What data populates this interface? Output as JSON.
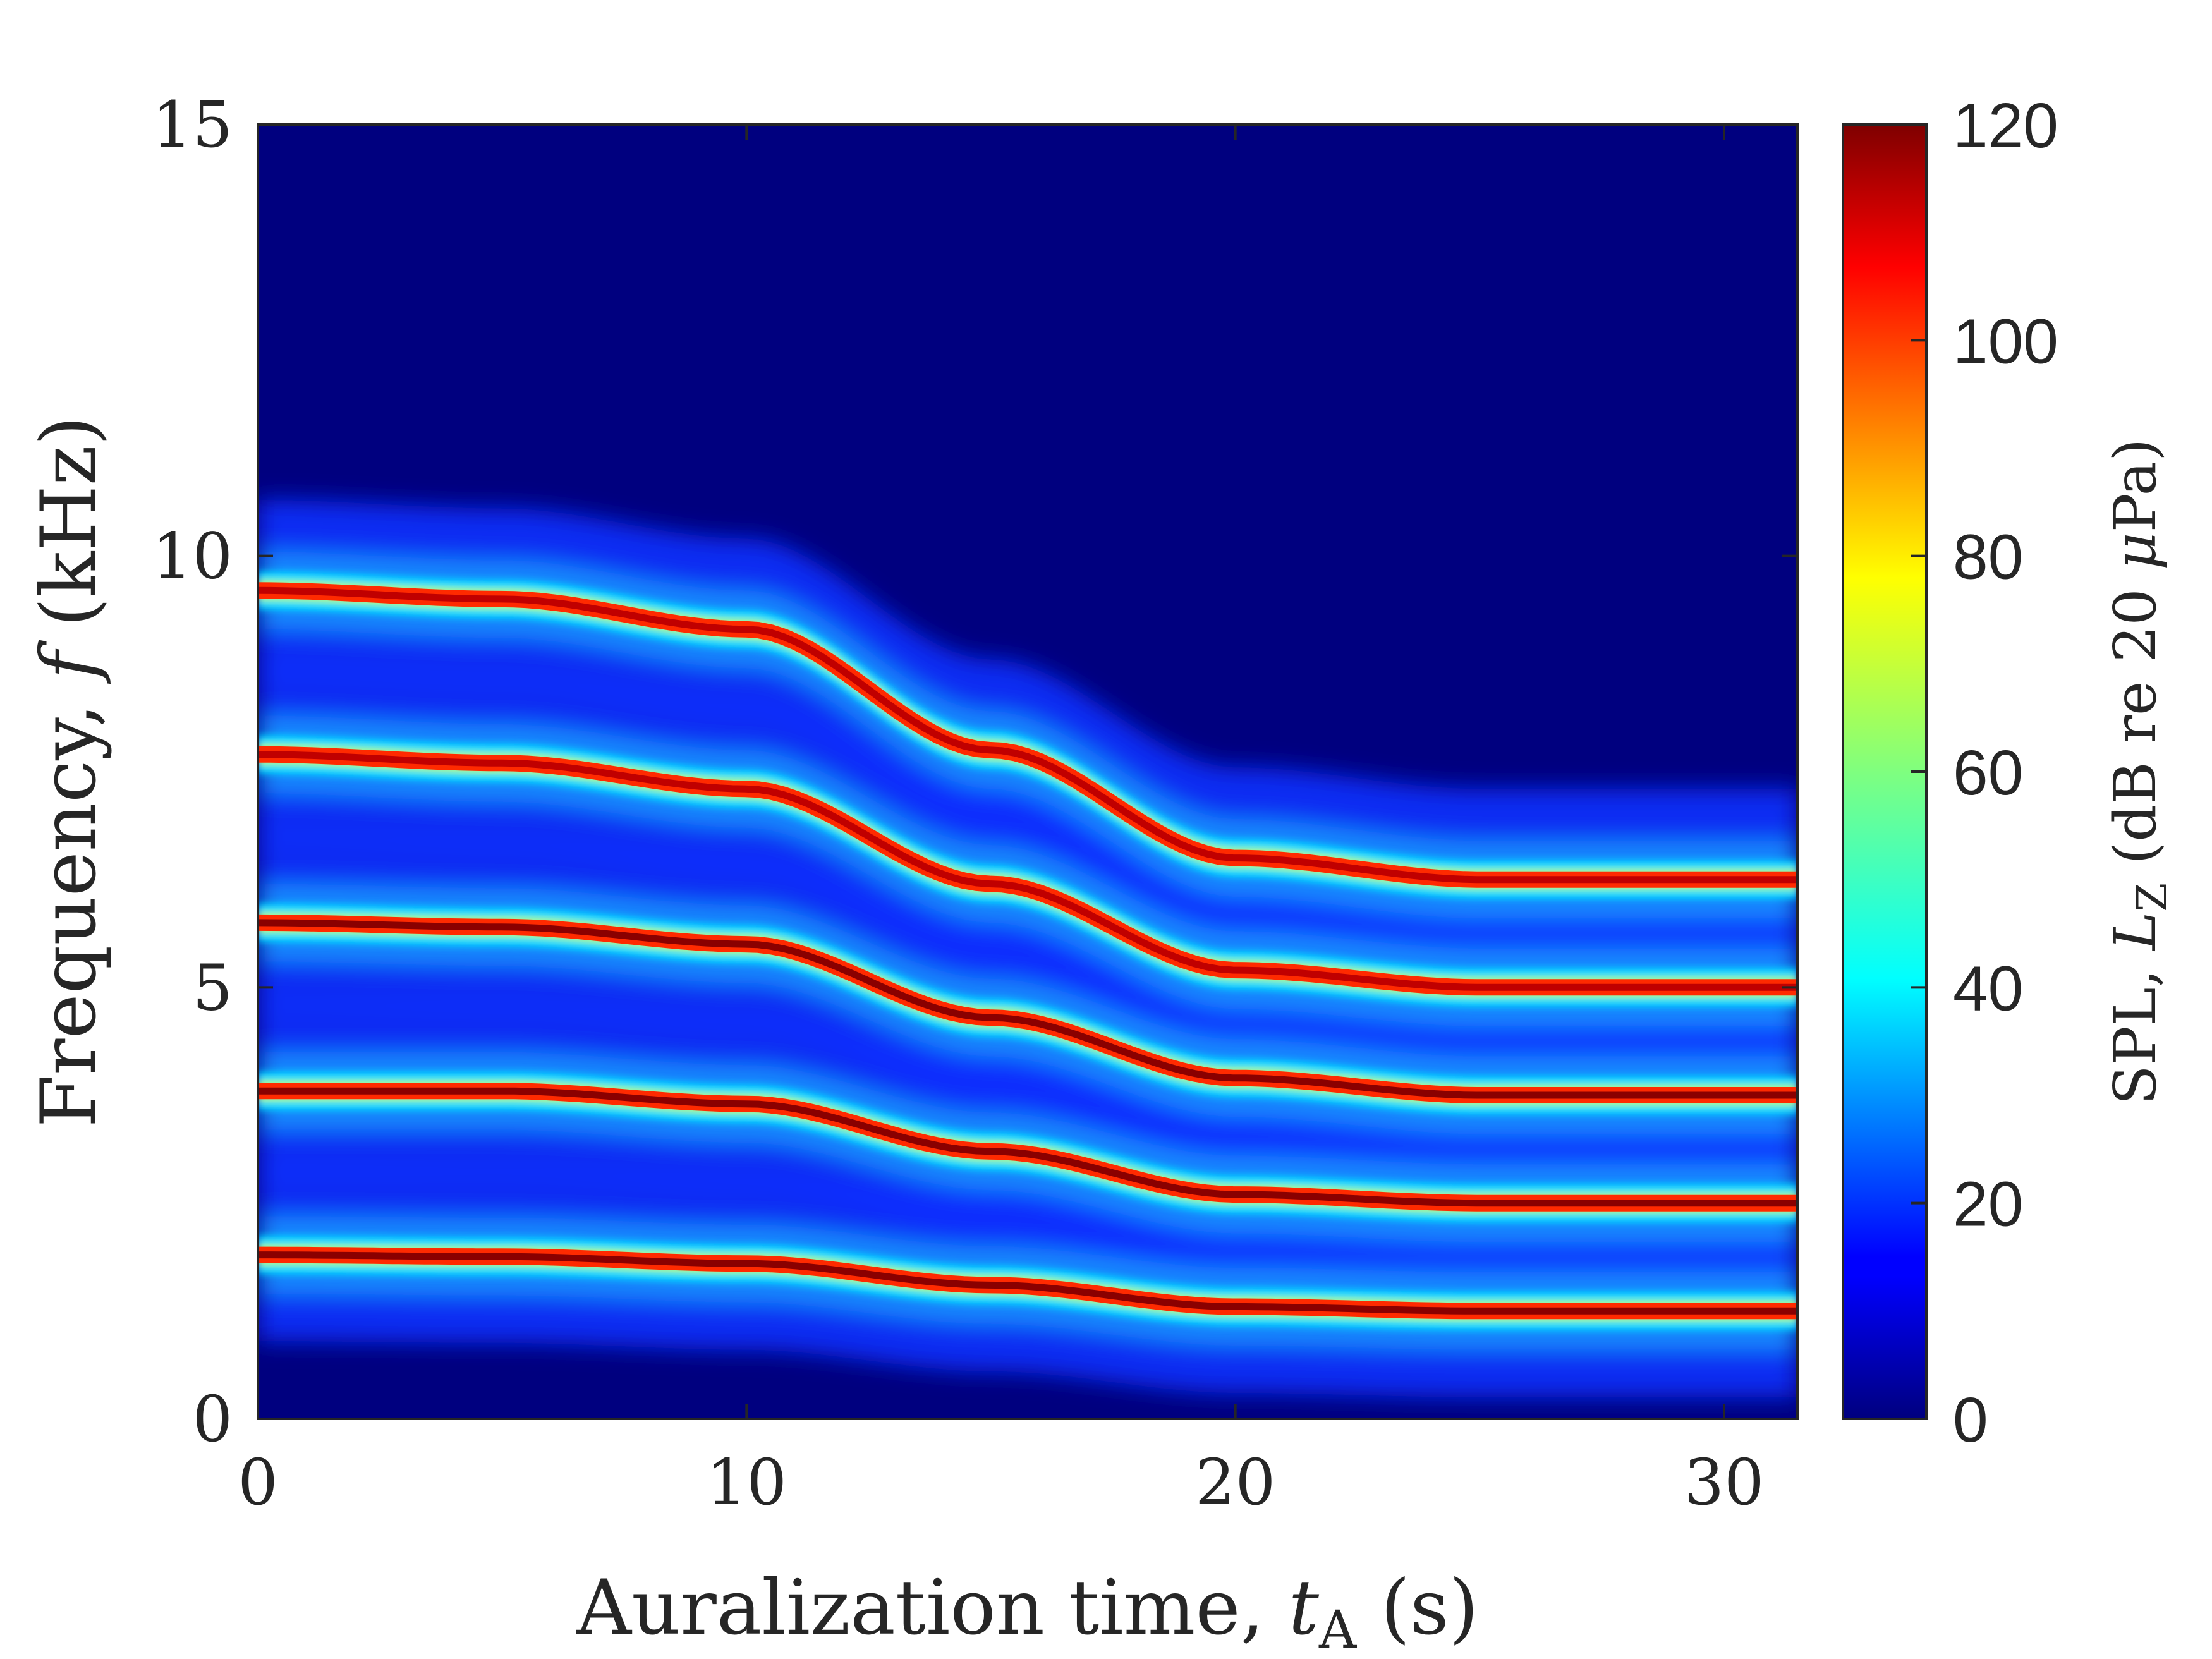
{
  "chart_data": {
    "type": "heatmap",
    "title": "",
    "xlabel": {
      "main": "Auralization time, ",
      "symbol": "t",
      "subscript": "A",
      "unit": " (s)"
    },
    "ylabel": {
      "main": "Frequency, ",
      "symbol": "f",
      "unit": " (kHz)"
    },
    "xlim": [
      0,
      31.5
    ],
    "ylim": [
      0,
      15
    ],
    "x_ticks": [
      "0",
      "10",
      "20",
      "30"
    ],
    "x_tick_values": [
      0,
      10,
      20,
      30
    ],
    "y_ticks": [
      "0",
      "5",
      "10",
      "15"
    ],
    "y_tick_values": [
      0,
      5,
      10,
      15
    ],
    "colorbar": {
      "label": {
        "main": "SPL, ",
        "symbol": "L",
        "subscript": "Z",
        "unit": " (dB re 20 ",
        "mu": "μ",
        "unit_end": "Pa)"
      },
      "range": [
        0,
        120
      ],
      "ticks": [
        "0",
        "20",
        "40",
        "60",
        "80",
        "100",
        "120"
      ],
      "tick_values": [
        0,
        20,
        40,
        60,
        80,
        100,
        120
      ],
      "colormap": "jet"
    },
    "series": [
      {
        "x": [
          0,
          5,
          10,
          15,
          20,
          25,
          31.5
        ],
        "y": [
          1.9,
          1.88,
          1.8,
          1.55,
          1.3,
          1.25,
          1.25
        ]
      },
      {
        "x": [
          0,
          5,
          10,
          15,
          20,
          25,
          31.5
        ],
        "y": [
          3.8,
          3.8,
          3.65,
          3.1,
          2.6,
          2.5,
          2.5
        ]
      },
      {
        "x": [
          0,
          5,
          10,
          15,
          20,
          25,
          31.5
        ],
        "y": [
          5.75,
          5.7,
          5.5,
          4.65,
          3.95,
          3.75,
          3.75
        ]
      },
      {
        "x": [
          0,
          5,
          10,
          15,
          20,
          25,
          31.5
        ],
        "y": [
          7.7,
          7.6,
          7.3,
          6.2,
          5.2,
          5.0,
          5.0
        ]
      },
      {
        "x": [
          0,
          5,
          10,
          15,
          20,
          25,
          31.5
        ],
        "y": [
          9.6,
          9.5,
          9.15,
          7.75,
          6.5,
          6.25,
          6.25
        ]
      }
    ],
    "colors": {
      "background_level": "#00007f",
      "axis": "#262626"
    }
  }
}
